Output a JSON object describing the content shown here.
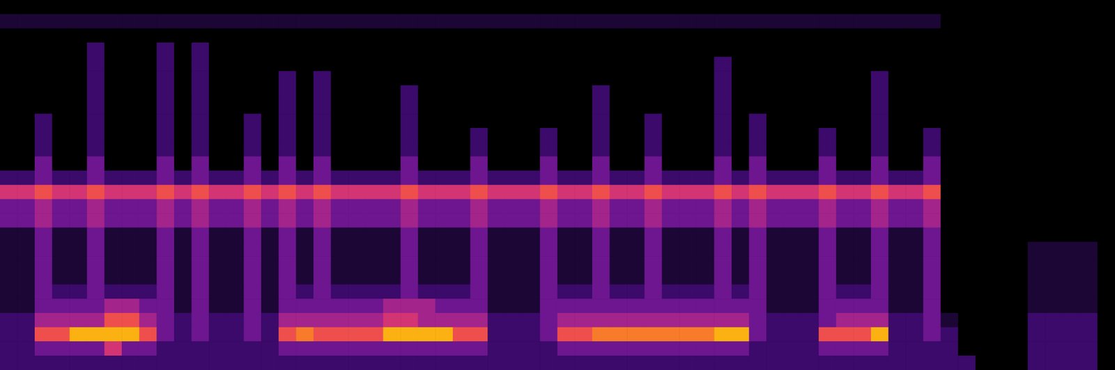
{
  "chart_data": {
    "type": "heatmap",
    "tick_labels": false,
    "value_range": [
      0,
      9
    ],
    "cells": [
      [
        0,
        0,
        0,
        0,
        0,
        0,
        0,
        0,
        0,
        0,
        0,
        0,
        0,
        0,
        0,
        0,
        0,
        0,
        0,
        0,
        0,
        0,
        0,
        0,
        0,
        0,
        0,
        0,
        0,
        0,
        0,
        0,
        0,
        0,
        0,
        0,
        0,
        0,
        0,
        0,
        0,
        0,
        0,
        0,
        0,
        0,
        0,
        0,
        0,
        0,
        0,
        0,
        0,
        0,
        0,
        0,
        0,
        0,
        0,
        0,
        0,
        0,
        0,
        0
      ],
      [
        1,
        1,
        1,
        1,
        1,
        1,
        1,
        1,
        1,
        1,
        1,
        1,
        1,
        1,
        1,
        1,
        1,
        1,
        1,
        1,
        1,
        1,
        1,
        1,
        1,
        1,
        1,
        1,
        1,
        1,
        1,
        1,
        1,
        1,
        1,
        1,
        1,
        1,
        1,
        1,
        1,
        1,
        1,
        1,
        1,
        1,
        1,
        1,
        1,
        1,
        1,
        1,
        1,
        1,
        0,
        0,
        0,
        0,
        0,
        0,
        0,
        0,
        0,
        0
      ],
      [
        0,
        0,
        0,
        0,
        0,
        0,
        0,
        0,
        0,
        0,
        0,
        0,
        0,
        0,
        0,
        0,
        0,
        0,
        0,
        0,
        0,
        0,
        0,
        0,
        0,
        0,
        0,
        0,
        0,
        0,
        0,
        0,
        0,
        0,
        0,
        0,
        0,
        0,
        0,
        0,
        0,
        0,
        0,
        0,
        0,
        0,
        0,
        0,
        0,
        0,
        0,
        0,
        0,
        0,
        0,
        0,
        0,
        0,
        0,
        0,
        0,
        0,
        0,
        0
      ],
      [
        0,
        0,
        0,
        0,
        0,
        2,
        0,
        0,
        0,
        2,
        0,
        2,
        0,
        0,
        0,
        0,
        0,
        0,
        0,
        0,
        0,
        0,
        0,
        0,
        0,
        0,
        0,
        0,
        0,
        0,
        0,
        0,
        0,
        0,
        0,
        0,
        0,
        0,
        0,
        0,
        0,
        0,
        0,
        0,
        0,
        0,
        0,
        0,
        0,
        0,
        0,
        0,
        0,
        0,
        0,
        0,
        0,
        0,
        0,
        0,
        0,
        0,
        0,
        0
      ],
      [
        0,
        0,
        0,
        0,
        0,
        2,
        0,
        0,
        0,
        2,
        0,
        2,
        0,
        0,
        0,
        0,
        0,
        0,
        0,
        0,
        0,
        0,
        0,
        0,
        0,
        0,
        0,
        0,
        0,
        0,
        0,
        0,
        0,
        0,
        0,
        0,
        0,
        0,
        0,
        0,
        0,
        2,
        0,
        0,
        0,
        0,
        0,
        0,
        0,
        0,
        0,
        0,
        0,
        0,
        0,
        0,
        0,
        0,
        0,
        0,
        0,
        0,
        0,
        0
      ],
      [
        0,
        0,
        0,
        0,
        0,
        2,
        0,
        0,
        0,
        2,
        0,
        2,
        0,
        0,
        0,
        0,
        2,
        0,
        2,
        0,
        0,
        0,
        0,
        0,
        0,
        0,
        0,
        0,
        0,
        0,
        0,
        0,
        0,
        0,
        0,
        0,
        0,
        0,
        0,
        0,
        0,
        2,
        0,
        0,
        0,
        0,
        0,
        0,
        0,
        0,
        2,
        0,
        0,
        0,
        0,
        0,
        0,
        0,
        0,
        0,
        0,
        0,
        0,
        0
      ],
      [
        0,
        0,
        0,
        0,
        0,
        2,
        0,
        0,
        0,
        2,
        0,
        2,
        0,
        0,
        0,
        0,
        2,
        0,
        2,
        0,
        0,
        0,
        0,
        2,
        0,
        0,
        0,
        0,
        0,
        0,
        0,
        0,
        0,
        0,
        2,
        0,
        0,
        0,
        0,
        0,
        0,
        2,
        0,
        0,
        0,
        0,
        0,
        0,
        0,
        0,
        2,
        0,
        0,
        0,
        0,
        0,
        0,
        0,
        0,
        0,
        0,
        0,
        0,
        0
      ],
      [
        0,
        0,
        0,
        0,
        0,
        2,
        0,
        0,
        0,
        2,
        0,
        2,
        0,
        0,
        0,
        0,
        2,
        0,
        2,
        0,
        0,
        0,
        0,
        2,
        0,
        0,
        0,
        0,
        0,
        0,
        0,
        0,
        0,
        0,
        2,
        0,
        0,
        0,
        0,
        0,
        0,
        2,
        0,
        0,
        0,
        0,
        0,
        0,
        0,
        0,
        2,
        0,
        0,
        0,
        0,
        0,
        0,
        0,
        0,
        0,
        0,
        0,
        0,
        0
      ],
      [
        0,
        0,
        2,
        0,
        0,
        2,
        0,
        0,
        0,
        2,
        0,
        2,
        0,
        0,
        2,
        0,
        2,
        0,
        2,
        0,
        0,
        0,
        0,
        2,
        0,
        0,
        0,
        0,
        0,
        0,
        0,
        0,
        0,
        0,
        2,
        0,
        0,
        2,
        0,
        0,
        0,
        2,
        0,
        2,
        0,
        0,
        0,
        0,
        0,
        0,
        2,
        0,
        0,
        0,
        0,
        0,
        0,
        0,
        0,
        0,
        0,
        0,
        0,
        0
      ],
      [
        0,
        0,
        2,
        0,
        0,
        2,
        0,
        0,
        0,
        2,
        0,
        2,
        0,
        0,
        2,
        0,
        2,
        0,
        2,
        0,
        0,
        0,
        0,
        2,
        0,
        0,
        0,
        2,
        0,
        0,
        0,
        2,
        0,
        0,
        2,
        0,
        0,
        2,
        0,
        0,
        0,
        2,
        0,
        2,
        0,
        0,
        0,
        2,
        0,
        0,
        2,
        0,
        0,
        2,
        0,
        0,
        0,
        0,
        0,
        0,
        0,
        0,
        0,
        0
      ],
      [
        0,
        0,
        2,
        0,
        0,
        2,
        0,
        0,
        0,
        2,
        0,
        2,
        0,
        0,
        2,
        0,
        2,
        0,
        2,
        0,
        0,
        0,
        0,
        2,
        0,
        0,
        0,
        2,
        0,
        0,
        0,
        2,
        0,
        0,
        2,
        0,
        0,
        2,
        0,
        0,
        0,
        2,
        0,
        2,
        0,
        0,
        0,
        2,
        0,
        0,
        2,
        0,
        0,
        2,
        0,
        0,
        0,
        0,
        0,
        0,
        0,
        0,
        0,
        0
      ],
      [
        0,
        0,
        3,
        0,
        0,
        3,
        0,
        0,
        0,
        3,
        0,
        3,
        0,
        0,
        3,
        0,
        3,
        0,
        3,
        0,
        0,
        0,
        0,
        3,
        0,
        0,
        0,
        3,
        0,
        0,
        0,
        3,
        0,
        0,
        3,
        0,
        0,
        3,
        0,
        0,
        0,
        3,
        0,
        3,
        0,
        0,
        0,
        3,
        0,
        0,
        3,
        0,
        0,
        3,
        0,
        0,
        0,
        0,
        0,
        0,
        0,
        0,
        0,
        0
      ],
      [
        2,
        2,
        3,
        2,
        2,
        3,
        2,
        2,
        2,
        3,
        2,
        3,
        2,
        2,
        3,
        2,
        3,
        2,
        3,
        2,
        2,
        2,
        2,
        3,
        2,
        2,
        2,
        3,
        2,
        2,
        2,
        3,
        2,
        2,
        3,
        2,
        2,
        3,
        2,
        2,
        2,
        3,
        2,
        3,
        2,
        2,
        2,
        3,
        2,
        2,
        3,
        2,
        2,
        3,
        0,
        0,
        0,
        0,
        0,
        0,
        0,
        0,
        0,
        0
      ],
      [
        5,
        5,
        6,
        5,
        5,
        6,
        5,
        5,
        5,
        6,
        5,
        6,
        5,
        5,
        6,
        5,
        6,
        5,
        6,
        5,
        5,
        5,
        5,
        6,
        5,
        5,
        5,
        6,
        5,
        5,
        5,
        6,
        5,
        5,
        6,
        5,
        5,
        6,
        5,
        5,
        5,
        6,
        5,
        6,
        5,
        5,
        5,
        6,
        5,
        5,
        6,
        5,
        5,
        6,
        0,
        0,
        0,
        0,
        0,
        0,
        0,
        0,
        0,
        0
      ],
      [
        3,
        3,
        4,
        3,
        3,
        4,
        3,
        3,
        3,
        4,
        3,
        4,
        3,
        3,
        4,
        3,
        4,
        3,
        4,
        3,
        3,
        3,
        3,
        4,
        3,
        3,
        3,
        4,
        3,
        3,
        3,
        4,
        3,
        3,
        4,
        3,
        3,
        4,
        3,
        3,
        3,
        4,
        3,
        4,
        3,
        3,
        3,
        4,
        3,
        3,
        4,
        3,
        3,
        4,
        0,
        0,
        0,
        0,
        0,
        0,
        0,
        0,
        0,
        0
      ],
      [
        3,
        3,
        4,
        3,
        3,
        4,
        3,
        3,
        3,
        4,
        3,
        4,
        3,
        3,
        4,
        3,
        4,
        3,
        4,
        3,
        3,
        3,
        3,
        4,
        3,
        3,
        3,
        4,
        3,
        3,
        3,
        4,
        3,
        3,
        4,
        3,
        3,
        4,
        3,
        3,
        3,
        4,
        3,
        4,
        3,
        3,
        3,
        4,
        3,
        3,
        4,
        3,
        3,
        4,
        0,
        0,
        0,
        0,
        0,
        0,
        0,
        0,
        0,
        0
      ],
      [
        1,
        1,
        3,
        1,
        1,
        3,
        1,
        1,
        1,
        3,
        1,
        3,
        1,
        1,
        3,
        1,
        3,
        1,
        3,
        1,
        1,
        1,
        1,
        3,
        1,
        1,
        1,
        3,
        1,
        1,
        1,
        3,
        1,
        1,
        3,
        1,
        1,
        3,
        1,
        1,
        1,
        3,
        1,
        3,
        1,
        1,
        1,
        3,
        1,
        1,
        3,
        1,
        1,
        3,
        0,
        0,
        0,
        0,
        0,
        0,
        0,
        0,
        0,
        0
      ],
      [
        1,
        1,
        3,
        1,
        1,
        3,
        1,
        1,
        1,
        3,
        1,
        3,
        1,
        1,
        3,
        1,
        3,
        1,
        3,
        1,
        1,
        1,
        1,
        3,
        1,
        1,
        1,
        3,
        1,
        1,
        1,
        3,
        1,
        1,
        3,
        1,
        1,
        3,
        1,
        1,
        1,
        3,
        1,
        3,
        1,
        1,
        1,
        3,
        1,
        1,
        3,
        1,
        1,
        3,
        0,
        0,
        0,
        0,
        0,
        1,
        1,
        1,
        1,
        0
      ],
      [
        1,
        1,
        3,
        1,
        1,
        3,
        1,
        1,
        1,
        3,
        1,
        3,
        1,
        1,
        3,
        1,
        3,
        1,
        3,
        1,
        1,
        1,
        1,
        3,
        1,
        1,
        1,
        3,
        1,
        1,
        1,
        3,
        1,
        1,
        3,
        1,
        1,
        3,
        1,
        1,
        1,
        3,
        1,
        3,
        1,
        1,
        1,
        3,
        1,
        1,
        3,
        1,
        1,
        3,
        0,
        0,
        0,
        0,
        0,
        1,
        1,
        1,
        1,
        0
      ],
      [
        1,
        1,
        3,
        1,
        1,
        3,
        1,
        1,
        1,
        3,
        1,
        3,
        1,
        1,
        3,
        1,
        3,
        1,
        3,
        1,
        1,
        1,
        1,
        3,
        1,
        1,
        1,
        3,
        1,
        1,
        1,
        3,
        1,
        1,
        3,
        1,
        1,
        3,
        1,
        1,
        1,
        3,
        1,
        3,
        1,
        1,
        1,
        3,
        1,
        1,
        3,
        1,
        1,
        3,
        0,
        0,
        0,
        0,
        0,
        1,
        1,
        1,
        1,
        0
      ],
      [
        1,
        1,
        3,
        2,
        2,
        3,
        2,
        2,
        2,
        3,
        1,
        3,
        1,
        1,
        3,
        1,
        3,
        2,
        3,
        2,
        2,
        2,
        2,
        3,
        2,
        2,
        2,
        3,
        1,
        1,
        1,
        3,
        2,
        2,
        3,
        2,
        2,
        3,
        2,
        2,
        2,
        3,
        2,
        3,
        1,
        1,
        1,
        3,
        2,
        2,
        3,
        1,
        1,
        3,
        0,
        0,
        0,
        0,
        0,
        1,
        1,
        1,
        1,
        0
      ],
      [
        1,
        1,
        3,
        3,
        3,
        3,
        4,
        4,
        3,
        3,
        1,
        3,
        1,
        1,
        3,
        1,
        3,
        3,
        3,
        3,
        3,
        3,
        4,
        4,
        4,
        3,
        3,
        3,
        1,
        1,
        1,
        3,
        3,
        3,
        3,
        3,
        3,
        3,
        3,
        3,
        3,
        3,
        3,
        3,
        1,
        1,
        1,
        3,
        3,
        3,
        3,
        1,
        1,
        3,
        0,
        0,
        0,
        0,
        0,
        1,
        1,
        1,
        1,
        0
      ],
      [
        2,
        2,
        4,
        4,
        4,
        4,
        6,
        6,
        4,
        3,
        2,
        3,
        2,
        2,
        3,
        2,
        4,
        4,
        4,
        4,
        4,
        4,
        5,
        5,
        4,
        4,
        4,
        4,
        2,
        2,
        2,
        3,
        4,
        4,
        4,
        4,
        4,
        4,
        4,
        4,
        4,
        4,
        4,
        3,
        2,
        2,
        2,
        3,
        4,
        4,
        4,
        2,
        2,
        3,
        1,
        0,
        0,
        0,
        0,
        2,
        2,
        2,
        2,
        0
      ],
      [
        2,
        2,
        6,
        6,
        8,
        8,
        8,
        8,
        6,
        3,
        2,
        3,
        2,
        2,
        3,
        2,
        6,
        7,
        6,
        6,
        6,
        6,
        8,
        8,
        8,
        8,
        6,
        6,
        2,
        2,
        2,
        3,
        6,
        6,
        7,
        7,
        7,
        7,
        7,
        7,
        7,
        8,
        8,
        3,
        2,
        2,
        2,
        6,
        6,
        6,
        8,
        2,
        2,
        3,
        2,
        0,
        0,
        0,
        0,
        2,
        2,
        2,
        2,
        0
      ],
      [
        2,
        2,
        3,
        3,
        3,
        3,
        5,
        3,
        3,
        2,
        2,
        2,
        2,
        2,
        2,
        2,
        3,
        3,
        3,
        3,
        3,
        3,
        3,
        3,
        3,
        3,
        3,
        3,
        2,
        2,
        2,
        2,
        3,
        3,
        3,
        3,
        3,
        3,
        3,
        3,
        3,
        3,
        3,
        2,
        2,
        2,
        2,
        3,
        3,
        3,
        3,
        2,
        2,
        2,
        2,
        0,
        0,
        0,
        0,
        2,
        2,
        2,
        2,
        0
      ],
      [
        2,
        2,
        2,
        2,
        2,
        2,
        2,
        2,
        2,
        2,
        2,
        2,
        2,
        2,
        2,
        2,
        2,
        2,
        2,
        2,
        2,
        2,
        2,
        2,
        2,
        2,
        2,
        2,
        2,
        2,
        2,
        2,
        2,
        2,
        2,
        2,
        2,
        2,
        2,
        2,
        2,
        2,
        2,
        2,
        2,
        2,
        2,
        2,
        2,
        2,
        2,
        2,
        2,
        2,
        2,
        2,
        0,
        0,
        0,
        2,
        2,
        2,
        2,
        0
      ]
    ]
  }
}
